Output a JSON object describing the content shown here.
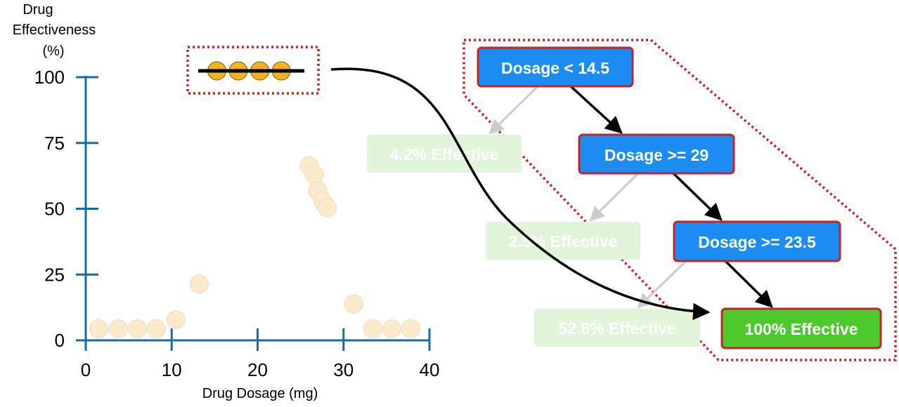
{
  "chart_data": {
    "type": "scatter",
    "ylabel_lines": [
      "Drug",
      "Effectiveness",
      "(%)"
    ],
    "xlabel": "Drug Dosage (mg)",
    "xlim": [
      0,
      40
    ],
    "ylim": [
      0,
      100
    ],
    "xticks": [
      "0",
      "10",
      "20",
      "30",
      "40"
    ],
    "yticks": [
      "0",
      "25",
      "50",
      "75",
      "100"
    ],
    "points": [
      {
        "x": 1.5,
        "y": 2.5
      },
      {
        "x": 3.8,
        "y": 2.5
      },
      {
        "x": 6.0,
        "y": 2.5
      },
      {
        "x": 8.2,
        "y": 2.5
      },
      {
        "x": 10.5,
        "y": 6
      },
      {
        "x": 13.2,
        "y": 19.5
      },
      {
        "x": 26.0,
        "y": 64.5
      },
      {
        "x": 26.6,
        "y": 61
      },
      {
        "x": 27.0,
        "y": 55
      },
      {
        "x": 27.6,
        "y": 51
      },
      {
        "x": 28.1,
        "y": 48.5
      },
      {
        "x": 31.2,
        "y": 12
      },
      {
        "x": 33.4,
        "y": 2.5
      },
      {
        "x": 35.6,
        "y": 2.5
      },
      {
        "x": 37.8,
        "y": 2.5
      }
    ],
    "highlight_points": [
      {
        "x": 15.5,
        "y": 100
      },
      {
        "x": 18.0,
        "y": 100
      },
      {
        "x": 20.5,
        "y": 100
      },
      {
        "x": 23.0,
        "y": 100
      }
    ]
  },
  "tree": {
    "nodes": [
      {
        "id": "root",
        "label": "Dosage < 14.5",
        "kind": "decision"
      },
      {
        "id": "n2",
        "label": "Dosage >= 29",
        "kind": "decision"
      },
      {
        "id": "n3",
        "label": "Dosage >= 23.5",
        "kind": "decision"
      },
      {
        "id": "leaf1",
        "label": "4.2% Effective",
        "kind": "faded-leaf"
      },
      {
        "id": "leaf2",
        "label": "2.5% Effective",
        "kind": "faded-leaf"
      },
      {
        "id": "leaf3",
        "label": "52.8% Effective",
        "kind": "faded-leaf"
      },
      {
        "id": "leaf4",
        "label": "100% Effective",
        "kind": "highlight-leaf"
      }
    ]
  },
  "colors": {
    "axis": "#1b6aa8",
    "point_faded": "#fbeacb",
    "point_highlight": "#f2b320",
    "decision_fill": "#1a8cf2",
    "decision_border": "#c2242a",
    "leaf_faded": "#e0f5da",
    "leaf_highlight": "#4ec92d",
    "dotted_border": "#cc2222"
  }
}
